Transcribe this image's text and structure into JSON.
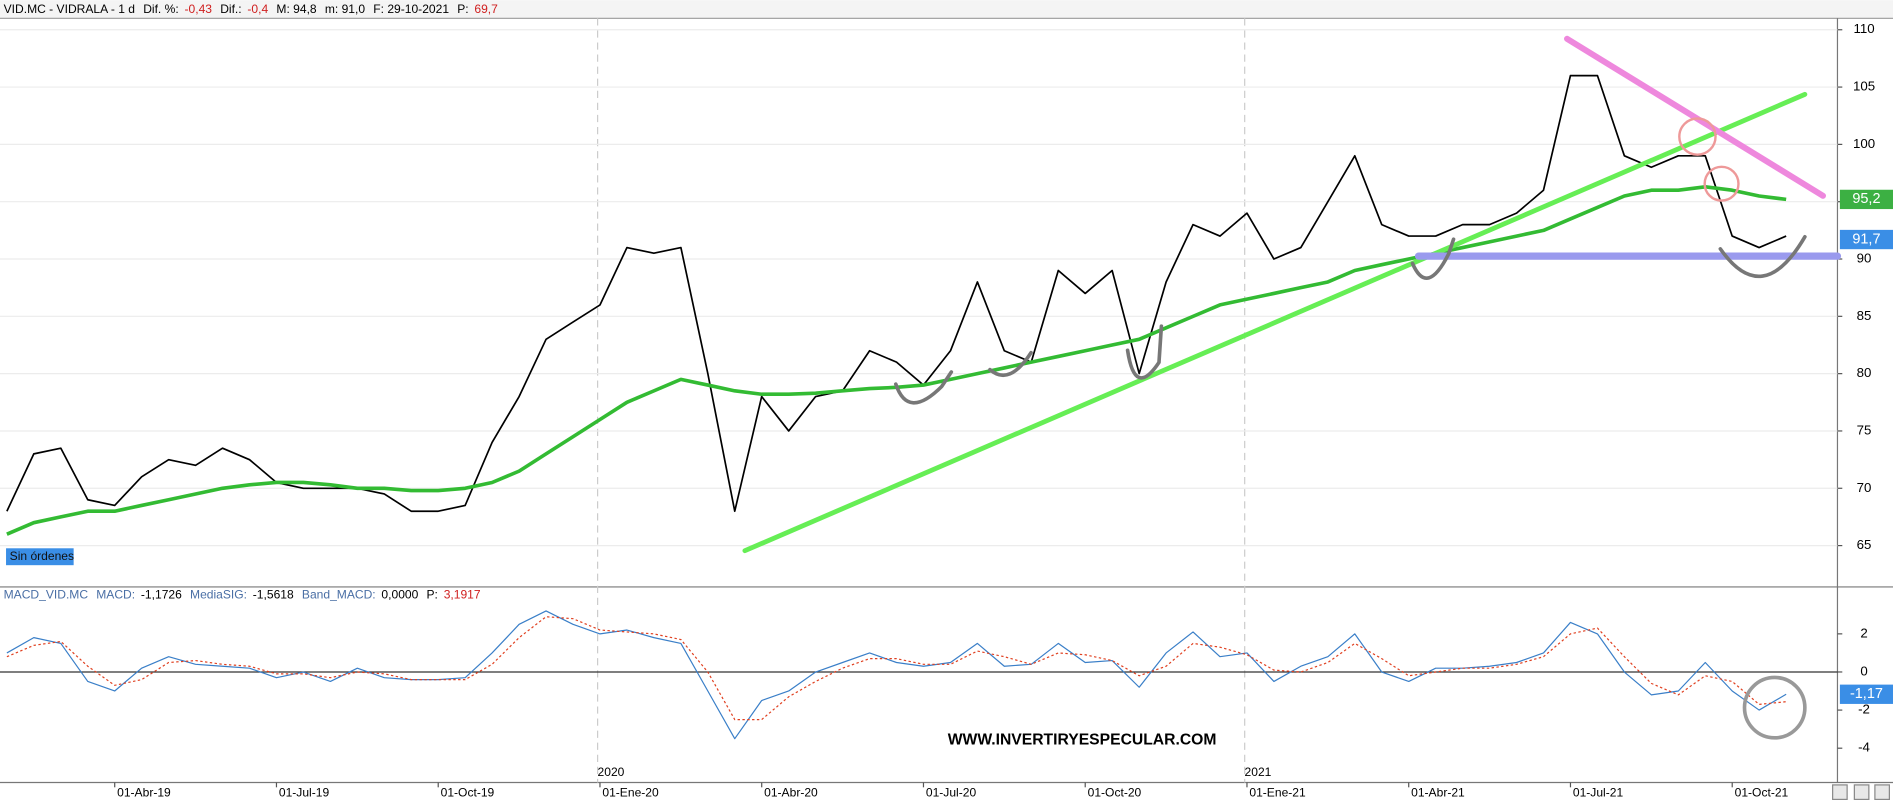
{
  "chart_data": [
    {
      "type": "line",
      "header": [
        "VID.MC - VIDRALA - 1 d",
        "Dif. %:",
        "-0,43",
        "Dif.:",
        "-0,4",
        "M: 94,8",
        "m: 91,0",
        "F: 29-10-2021",
        "P:",
        "69,7"
      ],
      "status": "Sin órdenes",
      "ylim": [
        61.5,
        111
      ],
      "yticks": [
        65,
        70,
        75,
        80,
        85,
        90,
        95,
        100,
        105,
        110
      ],
      "grid": true,
      "series": [
        {
          "color": "#000000",
          "values": [
            68,
            73,
            73.5,
            69,
            68.5,
            71,
            72.5,
            72,
            73.5,
            72.5,
            70.5,
            70,
            70,
            70,
            69.5,
            68,
            68,
            68.5,
            74,
            78,
            83,
            84.5,
            86,
            91,
            90.5,
            91,
            80,
            68,
            78,
            75,
            78,
            78.5,
            82,
            81,
            79,
            82,
            88,
            82,
            81,
            89,
            87,
            89,
            80,
            88,
            93,
            92,
            94,
            90,
            91,
            95,
            99,
            93,
            92,
            92,
            93,
            93,
            94,
            96,
            106,
            106,
            99,
            98,
            99,
            99,
            92,
            91,
            92
          ]
        },
        {
          "color": "#33bb33",
          "values": [
            66,
            67,
            67.5,
            68,
            68,
            68.5,
            69,
            69.5,
            70,
            70.3,
            70.5,
            70.5,
            70.3,
            70,
            70,
            69.8,
            69.8,
            70,
            70.5,
            71.5,
            73,
            74.5,
            76,
            77.5,
            78.5,
            79.5,
            79,
            78.5,
            78.2,
            78.2,
            78.3,
            78.5,
            78.7,
            78.8,
            79,
            79.5,
            80,
            80.5,
            81,
            81.5,
            82,
            82.5,
            83,
            84,
            85,
            86,
            86.5,
            87,
            87.5,
            88,
            89,
            89.5,
            90,
            90.5,
            91,
            91.5,
            92,
            92.5,
            93.5,
            94.5,
            95.5,
            96,
            96,
            96.3,
            96,
            95.5,
            95.2
          ]
        }
      ],
      "price_tags": [
        {
          "value": 95.2,
          "label": "95,2",
          "color": "#3cb043"
        },
        {
          "value": 91.7,
          "label": "91,7",
          "color": "#3a8ee6"
        }
      ]
    },
    {
      "type": "line",
      "header": [
        "MACD_VID.MC",
        "MACD:",
        "-1,1726",
        "MediaSIG:",
        "-1,5618",
        "Band_MACD:",
        "0,0000",
        "P:",
        "3,1917"
      ],
      "watermark": "WWW.INVERTIRYESPECULAR.COM",
      "categories": [
        null,
        null,
        null,
        null,
        "01-Abr-19",
        null,
        null,
        null,
        null,
        null,
        "01-Jul-19",
        null,
        null,
        null,
        null,
        null,
        "01-Oct-19",
        null,
        null,
        null,
        null,
        null,
        "01-Ene-20",
        null,
        null,
        null,
        null,
        null,
        "01-Abr-20",
        null,
        null,
        null,
        null,
        null,
        "01-Jul-20",
        null,
        null,
        null,
        null,
        null,
        "01-Oct-20",
        null,
        null,
        null,
        null,
        null,
        "01-Ene-21",
        null,
        null,
        null,
        null,
        null,
        "01-Abr-21",
        null,
        null,
        null,
        null,
        null,
        "01-Jul-21",
        null,
        null,
        null,
        null,
        null,
        "01-Oct-21",
        null,
        null
      ],
      "year_categories": [
        null,
        null,
        null,
        null,
        null,
        null,
        null,
        null,
        null,
        null,
        null,
        null,
        null,
        null,
        null,
        null,
        null,
        null,
        null,
        null,
        null,
        null,
        "2020",
        null,
        null,
        null,
        null,
        null,
        null,
        null,
        null,
        null,
        null,
        null,
        null,
        null,
        null,
        null,
        null,
        null,
        null,
        null,
        null,
        null,
        null,
        null,
        "2021",
        null,
        null,
        null,
        null,
        null,
        null,
        null,
        null,
        null,
        null,
        null,
        null,
        null,
        null,
        null,
        null,
        null,
        null,
        null,
        null
      ],
      "ylim": [
        -5.8,
        4.4
      ],
      "yticks": [
        -4,
        -2,
        0,
        2
      ],
      "zero_line": true,
      "series": [
        {
          "color": "#3a7fc8",
          "dash": false,
          "values": [
            1.0,
            1.8,
            1.5,
            -0.5,
            -1.0,
            0.2,
            0.8,
            0.4,
            0.3,
            0.2,
            -0.3,
            0,
            -0.5,
            0.2,
            -0.3,
            -0.4,
            -0.4,
            -0.3,
            1.0,
            2.5,
            3.2,
            2.5,
            2.0,
            2.2,
            1.8,
            1.5,
            -1.0,
            -3.5,
            -1.5,
            -1.0,
            0,
            0.5,
            1.0,
            0.5,
            0.3,
            0.5,
            1.5,
            0.3,
            0.4,
            1.5,
            0.5,
            0.6,
            -0.8,
            1.0,
            2.1,
            0.8,
            1.0,
            -0.5,
            0.3,
            0.8,
            2.0,
            0,
            -0.5,
            0.2,
            0.2,
            0.3,
            0.5,
            1.0,
            2.6,
            2.0,
            0,
            -1.2,
            -1.0,
            0.5,
            -1.0,
            -2.0,
            -1.17
          ]
        },
        {
          "color": "#e04020",
          "dash": true,
          "values": [
            0.8,
            1.4,
            1.6,
            0.3,
            -0.7,
            -0.4,
            0.5,
            0.6,
            0.4,
            0.3,
            -0.1,
            -0.1,
            -0.3,
            0,
            -0.1,
            -0.4,
            -0.4,
            -0.4,
            0.4,
            1.8,
            2.9,
            2.8,
            2.2,
            2.1,
            2.0,
            1.7,
            0,
            -2.5,
            -2.5,
            -1.3,
            -0.5,
            0.2,
            0.7,
            0.7,
            0.4,
            0.4,
            1.1,
            0.8,
            0.4,
            1.0,
            0.9,
            0.6,
            -0.2,
            0.3,
            1.5,
            1.3,
            0.9,
            0.1,
            0,
            0.5,
            1.5,
            0.7,
            -0.2,
            0,
            0.2,
            0.2,
            0.4,
            0.8,
            2.0,
            2.3,
            0.8,
            -0.6,
            -1.2,
            -0.2,
            -0.5,
            -1.7,
            -1.56
          ]
        }
      ],
      "price_tags": [
        {
          "value": -1.17,
          "label": "-1,17",
          "color": "#3a8ee6"
        }
      ]
    }
  ]
}
